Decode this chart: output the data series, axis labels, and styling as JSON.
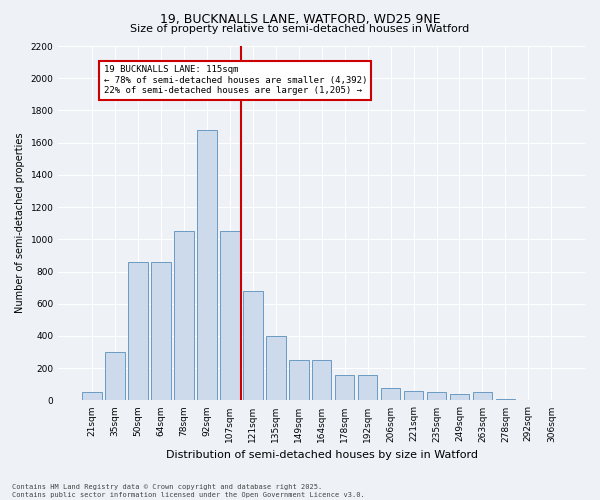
{
  "title1": "19, BUCKNALLS LANE, WATFORD, WD25 9NE",
  "title2": "Size of property relative to semi-detached houses in Watford",
  "xlabel": "Distribution of semi-detached houses by size in Watford",
  "ylabel": "Number of semi-detached properties",
  "categories": [
    "21sqm",
    "35sqm",
    "50sqm",
    "64sqm",
    "78sqm",
    "92sqm",
    "107sqm",
    "121sqm",
    "135sqm",
    "149sqm",
    "164sqm",
    "178sqm",
    "192sqm",
    "206sqm",
    "221sqm",
    "235sqm",
    "249sqm",
    "263sqm",
    "278sqm",
    "292sqm",
    "306sqm"
  ],
  "values": [
    50,
    300,
    860,
    860,
    1050,
    1680,
    1050,
    680,
    400,
    250,
    250,
    160,
    160,
    75,
    60,
    50,
    40,
    50,
    10,
    5,
    5
  ],
  "bar_color": "#ccdaeb",
  "bar_edge_color": "#6a9bc3",
  "vline_color": "#cc0000",
  "vline_index": 7,
  "ylim": [
    0,
    2200
  ],
  "yticks": [
    0,
    200,
    400,
    600,
    800,
    1000,
    1200,
    1400,
    1600,
    1800,
    2000,
    2200
  ],
  "annotation_title": "19 BUCKNALLS LANE: 115sqm",
  "annotation_line1": "← 78% of semi-detached houses are smaller (4,392)",
  "annotation_line2": "22% of semi-detached houses are larger (1,205) →",
  "annotation_box_color": "#cc0000",
  "footer1": "Contains HM Land Registry data © Crown copyright and database right 2025.",
  "footer2": "Contains public sector information licensed under the Open Government Licence v3.0.",
  "bg_color": "#eef2f7",
  "plot_bg_color": "#eef2f7",
  "title1_fontsize": 9,
  "title2_fontsize": 8,
  "ylabel_fontsize": 7,
  "xlabel_fontsize": 8,
  "tick_fontsize": 6.5,
  "ann_fontsize": 6.5,
  "footer_fontsize": 5
}
